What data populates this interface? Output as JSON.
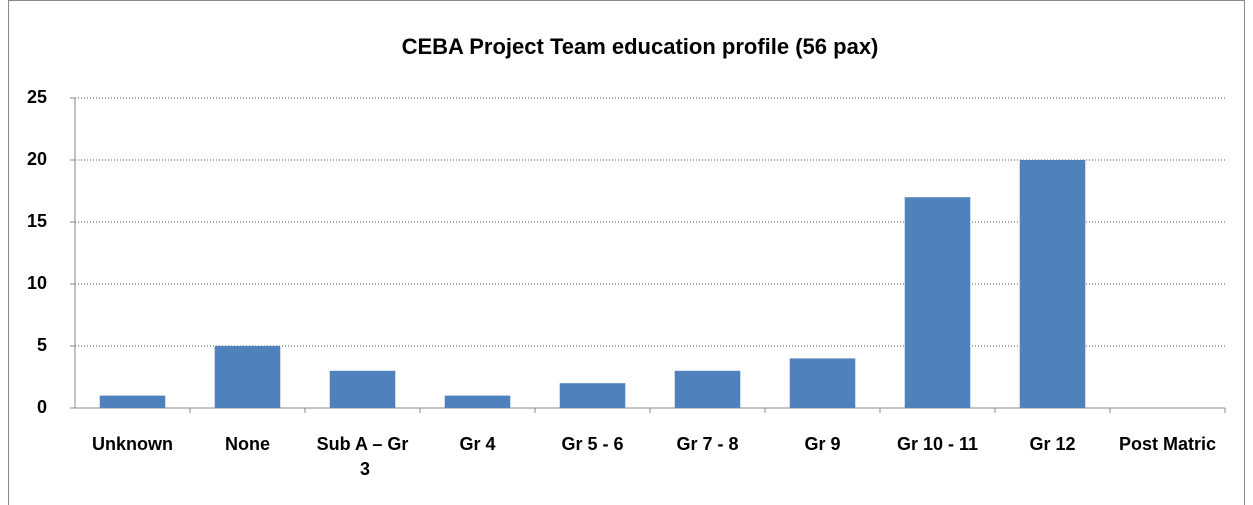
{
  "chart_data": {
    "type": "bar",
    "title": "CEBA Project Team education profile (56 pax)",
    "categories": [
      "Unknown",
      "None",
      "Sub A – Gr 3",
      "Gr 4",
      "Gr 5 - 6",
      "Gr 7 - 8",
      "Gr 9",
      "Gr 10 - 11",
      "Gr 12",
      "Post Matric"
    ],
    "values": [
      1,
      5,
      3,
      1,
      2,
      3,
      4,
      17,
      20,
      0
    ],
    "color": "#4f81bd",
    "ylim": [
      0,
      25
    ],
    "yticks": [
      0,
      5,
      10,
      15,
      20,
      25
    ],
    "grid": true
  }
}
